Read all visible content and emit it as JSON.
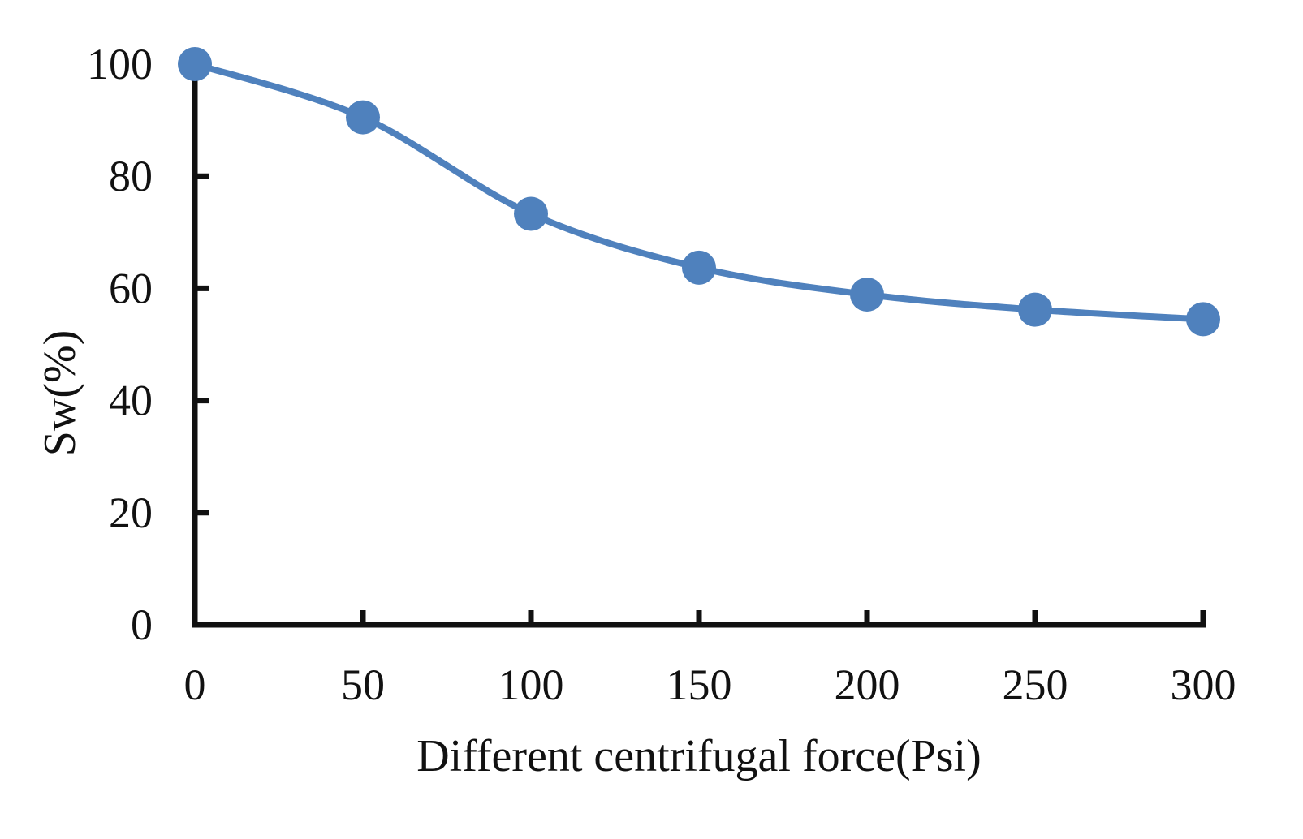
{
  "chart_data": {
    "type": "line",
    "smooth": true,
    "markers": true,
    "xlabel": "Different centrifugal force(Psi)",
    "ylabel": "Sw(%)",
    "xlim": [
      0,
      300
    ],
    "ylim": [
      0,
      100
    ],
    "x_ticks": [
      "0",
      "50",
      "100",
      "150",
      "200",
      "250",
      "300"
    ],
    "y_ticks": [
      "0",
      "20",
      "40",
      "60",
      "80",
      "100"
    ],
    "grid": false,
    "legend": "none",
    "series": [
      {
        "color": "#4f81bd",
        "points": [
          {
            "x": 0,
            "y": 100
          },
          {
            "x": 50,
            "y": 90.5
          },
          {
            "x": 100,
            "y": 73.3
          },
          {
            "x": 150,
            "y": 63.7
          },
          {
            "x": 200,
            "y": 58.9
          },
          {
            "x": 250,
            "y": 56.2
          },
          {
            "x": 300,
            "y": 54.5
          }
        ]
      }
    ],
    "axis_color": "#111111"
  }
}
